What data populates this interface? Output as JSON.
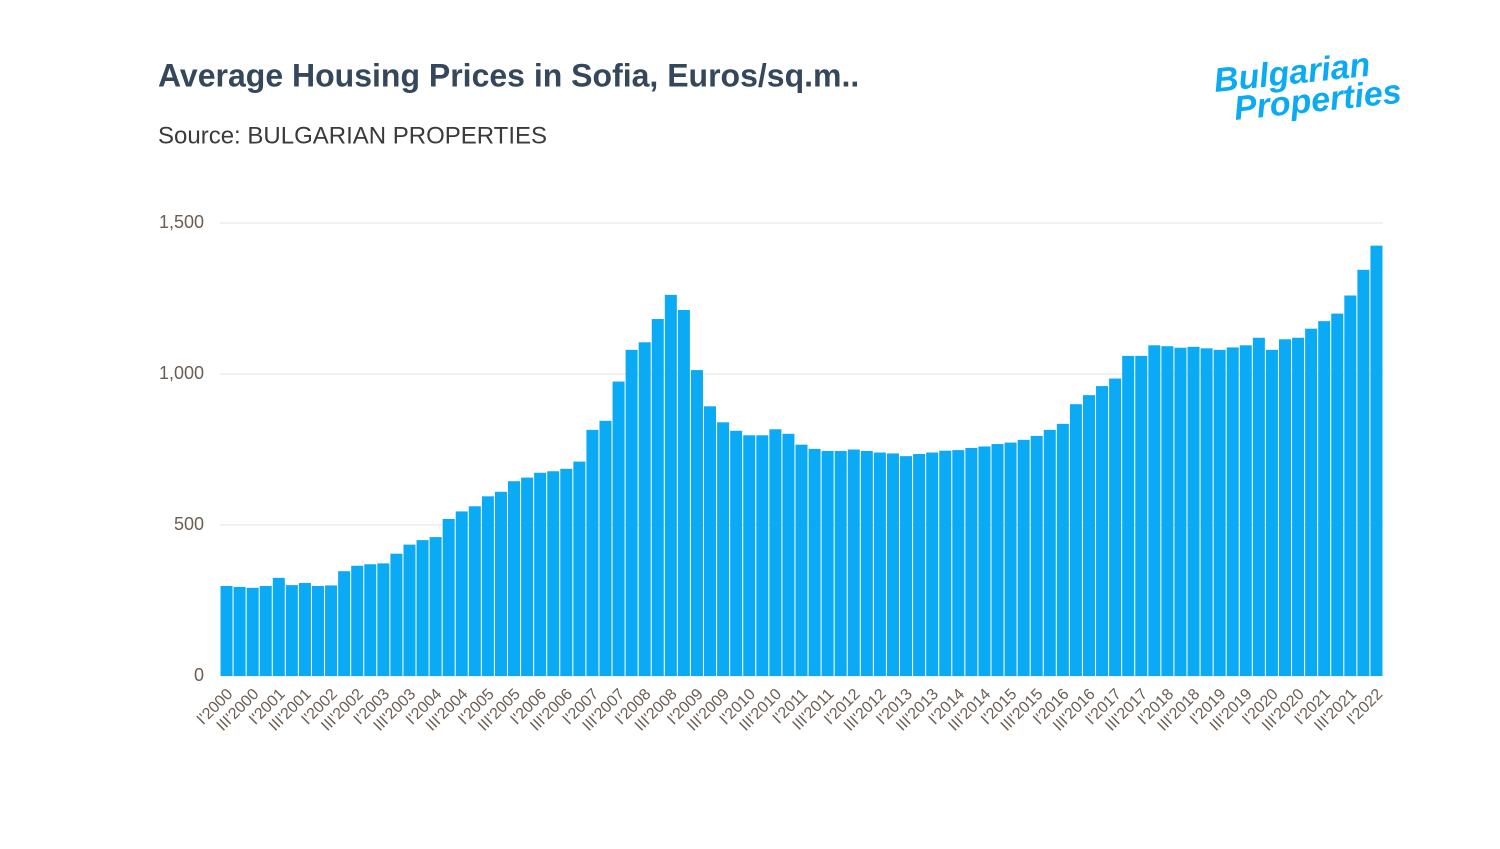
{
  "logo": [
    "Bulgarian",
    "Properties"
  ],
  "chart_data": {
    "type": "bar",
    "title": "Average Housing Prices in Sofia, Euros/sq.m..",
    "subtitle": "Source: BULGARIAN PROPERTIES",
    "color": "#0baaf4",
    "grid": true,
    "ylim": [
      0,
      1500
    ],
    "yticks": [
      0,
      500,
      {
        "value": 1000,
        "label": "1,000"
      },
      {
        "value": 1500,
        "label": "1,500"
      }
    ],
    "categories": [
      "I'2000",
      null,
      "III'2000",
      null,
      "I'2001",
      null,
      "III'2001",
      null,
      "I'2002",
      null,
      "III'2002",
      null,
      "I'2003",
      null,
      "III'2003",
      null,
      "I'2004",
      null,
      "III'2004",
      null,
      "I'2005",
      null,
      "III'2005",
      null,
      "I'2006",
      null,
      "III'2006",
      null,
      "I'2007",
      null,
      "III'2007",
      null,
      "I'2008",
      null,
      "III'2008",
      null,
      "I'2009",
      null,
      "III'2009",
      null,
      "I'2010",
      null,
      "III'2010",
      null,
      "I'2011",
      null,
      "III'2011",
      null,
      "I'2012",
      null,
      "III'2012",
      null,
      "I'2013",
      null,
      "III'2013",
      null,
      "I'2014",
      null,
      "III'2014",
      null,
      "I'2015",
      null,
      "III'2015",
      null,
      "I'2016",
      null,
      "III'2016",
      null,
      "I'2017",
      null,
      "III'2017",
      null,
      "I'2018",
      null,
      "III'2018",
      null,
      "I'2019",
      null,
      "III'2019",
      null,
      "I'2020",
      null,
      "III'2020",
      null,
      "I'2021",
      null,
      "III'2021",
      null,
      "I'2022"
    ],
    "values": [
      298,
      295,
      292,
      298,
      325,
      301,
      308,
      298,
      300,
      347,
      365,
      370,
      373,
      405,
      435,
      450,
      460,
      520,
      545,
      562,
      595,
      610,
      645,
      657,
      673,
      678,
      686,
      710,
      815,
      845,
      975,
      1080,
      1105,
      1182,
      1262,
      1212,
      1013,
      893,
      840,
      812,
      797,
      797,
      817,
      802,
      766,
      752,
      745,
      745,
      750,
      745,
      740,
      737,
      728,
      735,
      740,
      746,
      748,
      755,
      760,
      768,
      773,
      782,
      795,
      815,
      835,
      900,
      930,
      960,
      985,
      1060,
      1060,
      1095,
      1092,
      1087,
      1090,
      1085,
      1080,
      1088,
      1095,
      1120,
      1080,
      1115,
      1120,
      1150,
      1175,
      1200,
      1260,
      1345,
      1425
    ]
  }
}
